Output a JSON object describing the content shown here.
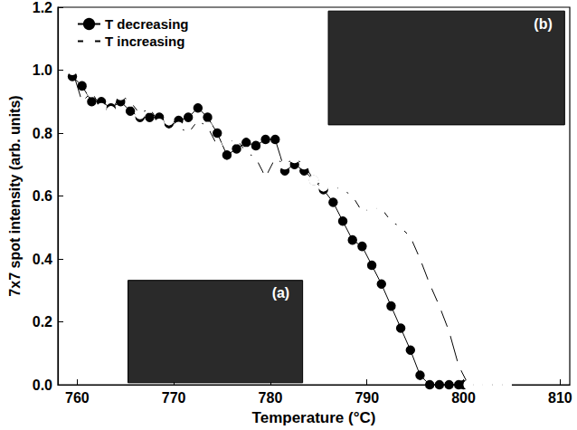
{
  "chart_data": {
    "type": "line",
    "x_label": "Temperature (°C)",
    "y_label": "7x7 spot intensity (arb. units)",
    "annotations": [
      "(a)",
      "(b)"
    ],
    "xlim": [
      758,
      811
    ],
    "xticks": [
      760,
      770,
      780,
      790,
      800,
      810
    ],
    "ylim": [
      0,
      1.2
    ],
    "yticks": [
      {
        "value": 0,
        "label": "0.0"
      },
      0.2,
      0.4,
      0.6,
      0.8,
      {
        "value": 1,
        "label": "1.0"
      },
      1.2
    ],
    "grid": false,
    "legend": "upper left",
    "series": [
      {
        "name": "T decreasing",
        "color": "#000000",
        "marker": "circle",
        "line_style": "solid",
        "x": [
          759.5,
          760.5,
          761.5,
          762.5,
          763.5,
          764.5,
          765.5,
          766.5,
          767.5,
          768.5,
          769.5,
          770.5,
          771.5,
          772.5,
          773.5,
          774.5,
          775.5,
          776.5,
          777.5,
          778.5,
          779.5,
          780.5,
          781.5,
          782.5,
          783.5,
          784.5,
          785.5,
          786.5,
          787.5,
          788.5,
          789.5,
          790.5,
          791.5,
          792.5,
          793.5,
          794.5,
          795.5,
          796.5,
          797.5,
          798.5,
          799.5,
          800.0
        ],
        "values": [
          0.98,
          0.95,
          0.9,
          0.9,
          0.88,
          0.9,
          0.87,
          0.85,
          0.85,
          0.85,
          0.83,
          0.84,
          0.85,
          0.88,
          0.85,
          0.8,
          0.73,
          0.75,
          0.77,
          0.76,
          0.78,
          0.78,
          0.68,
          0.7,
          0.68,
          0.65,
          0.62,
          0.58,
          0.52,
          0.46,
          0.44,
          0.38,
          0.32,
          0.25,
          0.18,
          0.11,
          0.03,
          0.0,
          0.0,
          0.0,
          0.0,
          0.0
        ]
      },
      {
        "name": "T increasing",
        "color": "#000000",
        "marker": "open_circle",
        "line_style": "solid",
        "x": [
          759.5,
          760.5,
          761.5,
          762.5,
          763.5,
          764.5,
          765.5,
          766.5,
          767.5,
          768.5,
          769.5,
          770.5,
          771.5,
          772.5,
          773.5,
          774.5,
          775.5,
          776.5,
          777.5,
          778.5,
          779.5,
          780.5,
          781.5,
          782.5,
          783.5,
          784.5,
          785.5,
          786.5,
          787.5,
          788.5,
          789.5,
          790.5,
          791.5,
          792.5,
          793.5,
          794.5,
          795.5,
          796.5,
          797.5,
          798.5,
          799.5,
          800.5,
          801.5,
          802.5,
          803.5,
          804.5
        ],
        "values": [
          1.0,
          0.9,
          0.93,
          0.88,
          0.87,
          0.92,
          0.9,
          0.86,
          0.88,
          0.83,
          0.84,
          0.82,
          0.8,
          0.84,
          0.82,
          0.76,
          0.77,
          0.78,
          0.74,
          0.72,
          0.66,
          0.72,
          0.7,
          0.72,
          0.7,
          0.65,
          0.63,
          0.63,
          0.62,
          0.6,
          0.55,
          0.56,
          0.56,
          0.52,
          0.5,
          0.47,
          0.4,
          0.32,
          0.25,
          0.17,
          0.06,
          0.0,
          0.0,
          0.0,
          0.0,
          0.0
        ]
      }
    ]
  }
}
